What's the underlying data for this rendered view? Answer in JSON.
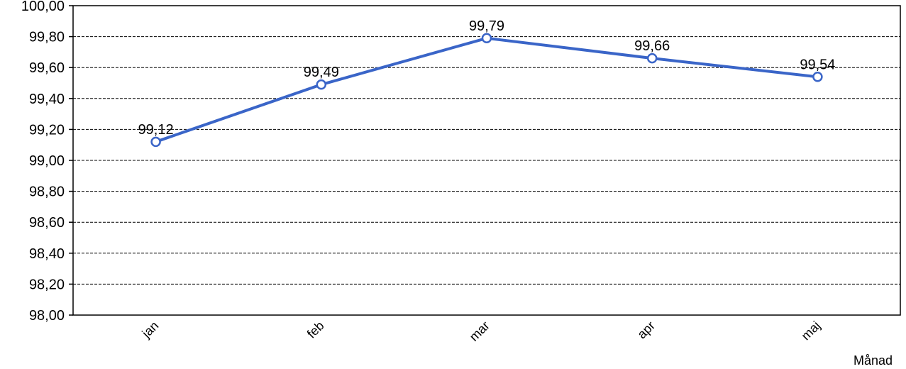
{
  "chart_data": {
    "type": "line",
    "categories": [
      "jan",
      "feb",
      "mar",
      "apr",
      "maj"
    ],
    "series": [
      {
        "values": [
          99.12,
          99.49,
          99.79,
          99.66,
          99.54
        ],
        "color": "#3a65c8"
      }
    ],
    "data_labels": [
      "99,12",
      "99,49",
      "99,79",
      "99,66",
      "99,54"
    ],
    "xlabel": "Månad",
    "ylabel": "",
    "ylim": [
      98.0,
      100.0
    ],
    "yticks": [
      98.0,
      98.2,
      98.4,
      98.6,
      98.8,
      99.0,
      99.2,
      99.4,
      99.6,
      99.8,
      100.0
    ],
    "ytick_labels": [
      "98,00",
      "98,20",
      "98,40",
      "98,60",
      "98,80",
      "99,00",
      "99,20",
      "99,40",
      "99,60",
      "99,80",
      "100,00"
    ],
    "grid": "horizontal-dashed",
    "legend": "none"
  }
}
